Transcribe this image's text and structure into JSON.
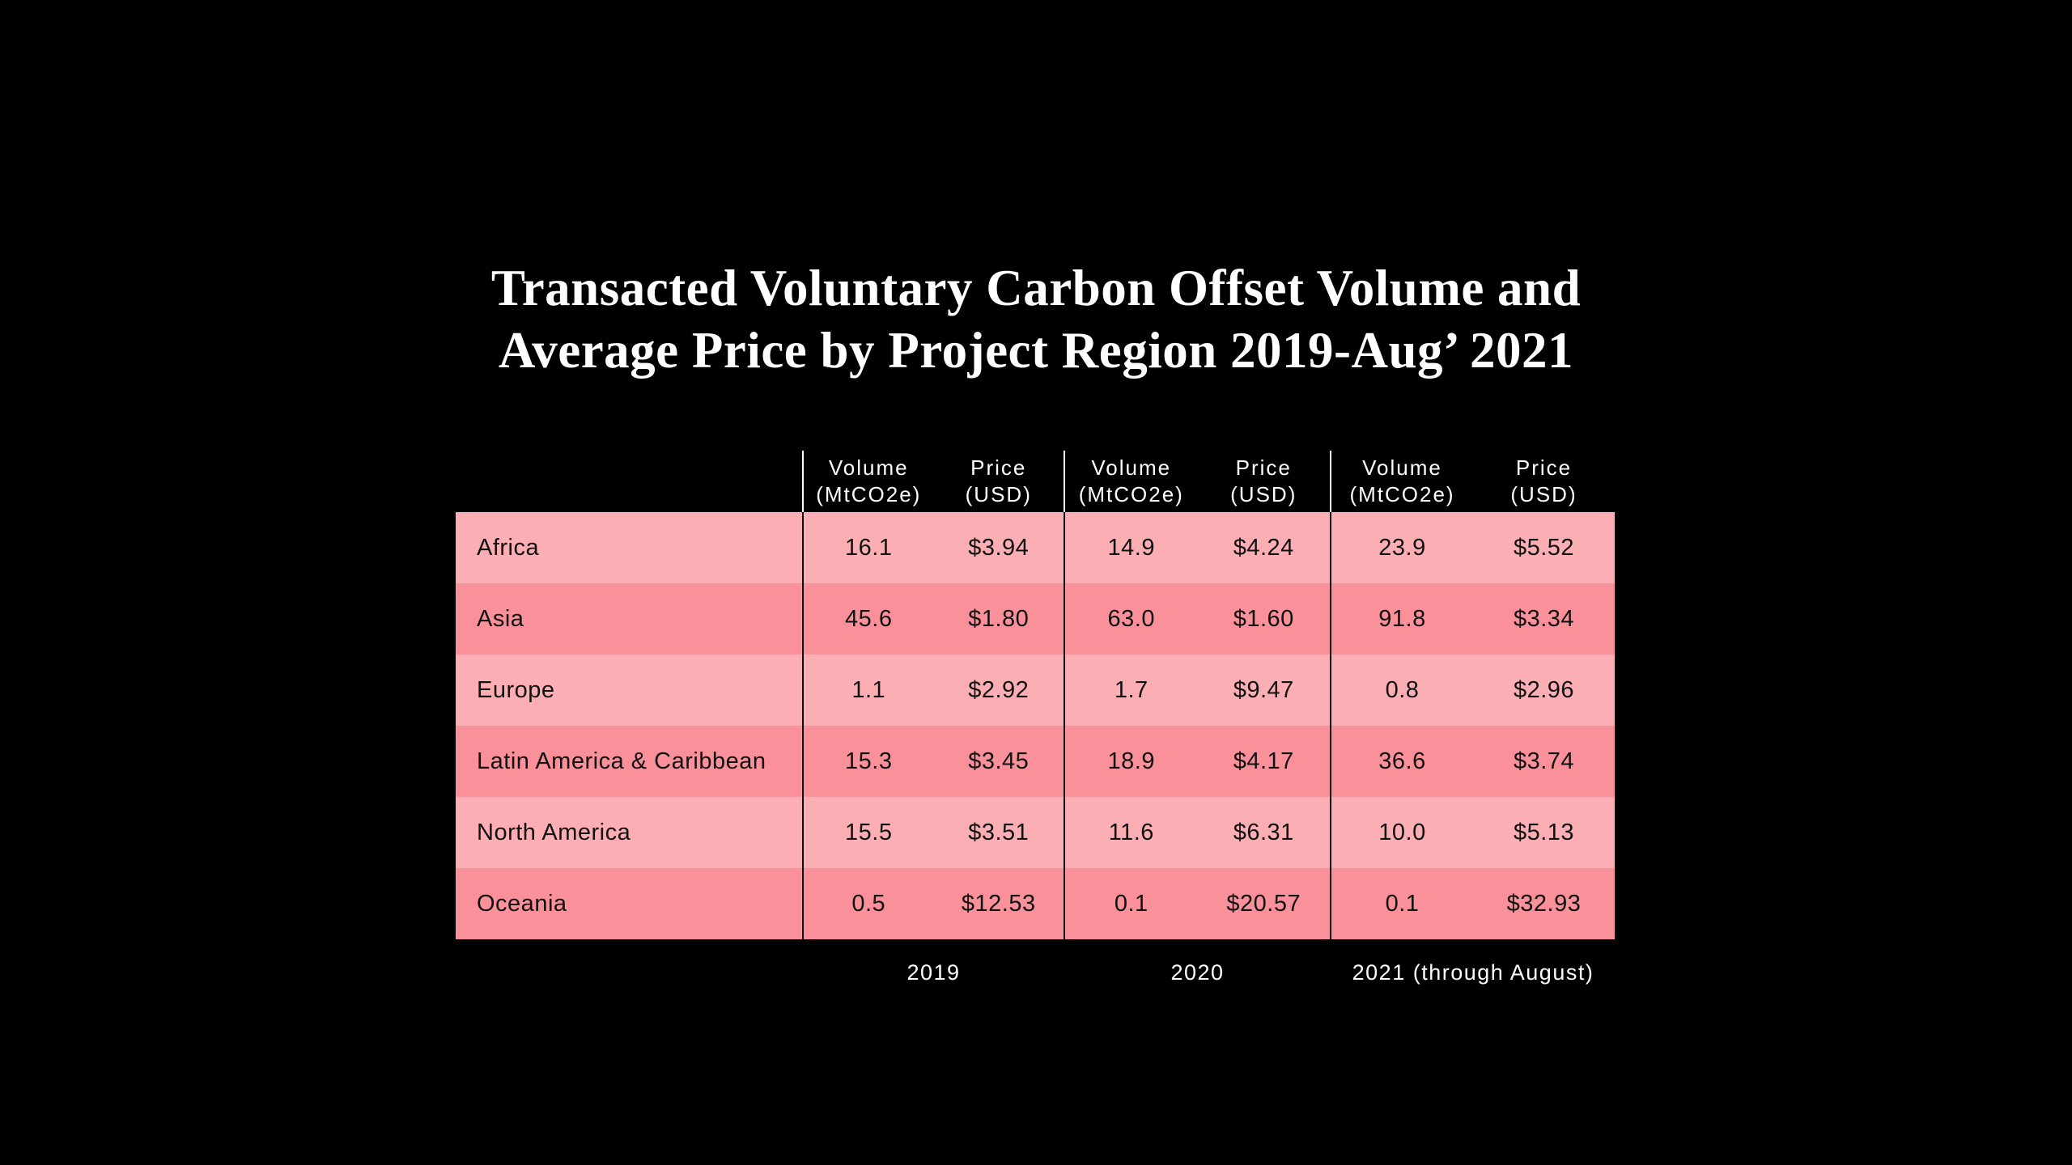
{
  "title": {
    "line1": "Transacted Voluntary Carbon Offset Volume and",
    "line2": "Average Price by Project Region 2019-Aug’ 2021"
  },
  "table": {
    "volume_header": {
      "line1": "Volume",
      "line2": "(MtCO2e)"
    },
    "price_header": {
      "line1": "Price",
      "line2": "(USD)"
    },
    "year_labels": [
      "2019",
      "2020",
      "2021 (through August)"
    ],
    "rows": [
      {
        "region": "Africa",
        "cells": [
          "16.1",
          "$3.94",
          "14.9",
          "$4.24",
          "23.9",
          "$5.52"
        ]
      },
      {
        "region": "Asia",
        "cells": [
          "45.6",
          "$1.80",
          "63.0",
          "$1.60",
          "91.8",
          "$3.34"
        ]
      },
      {
        "region": "Europe",
        "cells": [
          "1.1",
          "$2.92",
          "1.7",
          "$9.47",
          "0.8",
          "$2.96"
        ]
      },
      {
        "region": "Latin America & Caribbean",
        "cells": [
          "15.3",
          "$3.45",
          "18.9",
          "$4.17",
          "36.6",
          "$3.74"
        ]
      },
      {
        "region": "North America",
        "cells": [
          "15.5",
          "$3.51",
          "11.6",
          "$6.31",
          "10.0",
          "$5.13"
        ]
      },
      {
        "region": "Oceania",
        "cells": [
          "0.5",
          "$12.53",
          "0.1",
          "$20.57",
          "0.1",
          "$32.93"
        ]
      }
    ]
  },
  "colors": {
    "background": "#000000",
    "row_light": "#fbafb4",
    "row_dark": "#f9909a",
    "row_text": "#111111",
    "header_text": "#ffffff",
    "header_divider": "#ffffff",
    "body_divider": "#000000"
  },
  "chart_data": {
    "type": "table",
    "title": "Transacted Voluntary Carbon Offset Volume and Average Price by Project Region 2019-Aug' 2021",
    "column_groups": [
      "2019",
      "2020",
      "2021 (through August)"
    ],
    "columns_per_group": [
      "Volume (MtCO2e)",
      "Price (USD)"
    ],
    "rows": [
      {
        "region": "Africa",
        "volume": [
          16.1,
          14.9,
          23.9
        ],
        "price_usd": [
          3.94,
          4.24,
          5.52
        ]
      },
      {
        "region": "Asia",
        "volume": [
          45.6,
          63.0,
          91.8
        ],
        "price_usd": [
          1.8,
          1.6,
          3.34
        ]
      },
      {
        "region": "Europe",
        "volume": [
          1.1,
          1.7,
          0.8
        ],
        "price_usd": [
          2.92,
          9.47,
          2.96
        ]
      },
      {
        "region": "Latin America & Caribbean",
        "volume": [
          15.3,
          18.9,
          36.6
        ],
        "price_usd": [
          3.45,
          4.17,
          3.74
        ]
      },
      {
        "region": "North America",
        "volume": [
          15.5,
          11.6,
          10.0
        ],
        "price_usd": [
          3.51,
          6.31,
          5.13
        ]
      },
      {
        "region": "Oceania",
        "volume": [
          0.5,
          0.1,
          0.1
        ],
        "price_usd": [
          12.53,
          20.57,
          32.93
        ]
      }
    ],
    "layout": {
      "background": "black",
      "row_stripes": [
        "light-pink",
        "dark-pink"
      ],
      "group_dividers": true
    }
  }
}
